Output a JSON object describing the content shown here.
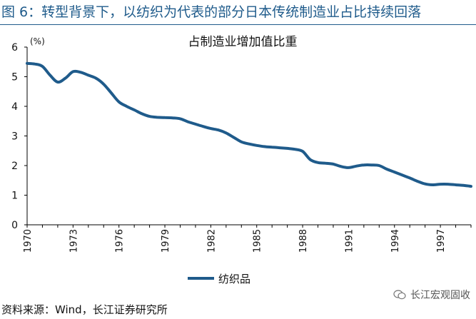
{
  "figure_title": "图 6：转型背景下，以纺织为代表的部分日本传统制造业占比持续回落",
  "source_note": "资料来源：Wind，长江证券研究所",
  "watermark": "长江宏观固收",
  "chart_data": {
    "type": "line",
    "title": "占制造业增加值比重",
    "unit_label": "(%)",
    "xlabel": "",
    "ylabel": "",
    "xlim": [
      1970,
      1999
    ],
    "ylim": [
      0,
      6
    ],
    "y_ticks": [
      "0",
      "1",
      "2",
      "3",
      "4",
      "5",
      "6"
    ],
    "x_ticks": [
      "1970",
      "1973",
      "1976",
      "1979",
      "1982",
      "1985",
      "1988",
      "1991",
      "1994",
      "1997"
    ],
    "grid": false,
    "legend_position": "bottom-center",
    "series": [
      {
        "name": "纺织品",
        "color": "#1f5b8b",
        "x": [
          1970,
          1970.5,
          1971,
          1971.5,
          1972,
          1972.5,
          1973,
          1973.5,
          1974,
          1974.5,
          1975,
          1975.5,
          1976,
          1976.5,
          1977,
          1977.5,
          1978,
          1978.5,
          1979,
          1979.5,
          1980,
          1980.5,
          1981,
          1981.5,
          1982,
          1982.5,
          1983,
          1983.5,
          1984,
          1984.5,
          1985,
          1985.5,
          1986,
          1986.5,
          1987,
          1987.5,
          1988,
          1988.5,
          1989,
          1989.5,
          1990,
          1990.5,
          1991,
          1991.5,
          1992,
          1992.5,
          1993,
          1993.5,
          1994,
          1994.5,
          1995,
          1995.5,
          1996,
          1996.5,
          1997,
          1997.5,
          1998,
          1998.5,
          1999
        ],
        "values": [
          5.45,
          5.43,
          5.35,
          5.05,
          4.82,
          4.95,
          5.17,
          5.15,
          5.05,
          4.95,
          4.75,
          4.45,
          4.15,
          4.0,
          3.88,
          3.75,
          3.66,
          3.63,
          3.62,
          3.61,
          3.58,
          3.48,
          3.4,
          3.32,
          3.25,
          3.2,
          3.1,
          2.95,
          2.8,
          2.73,
          2.68,
          2.64,
          2.62,
          2.6,
          2.58,
          2.55,
          2.48,
          2.2,
          2.1,
          2.08,
          2.05,
          1.97,
          1.93,
          1.98,
          2.02,
          2.02,
          2.0,
          1.88,
          1.78,
          1.68,
          1.58,
          1.47,
          1.38,
          1.35,
          1.37,
          1.37,
          1.35,
          1.33,
          1.3
        ]
      }
    ]
  }
}
